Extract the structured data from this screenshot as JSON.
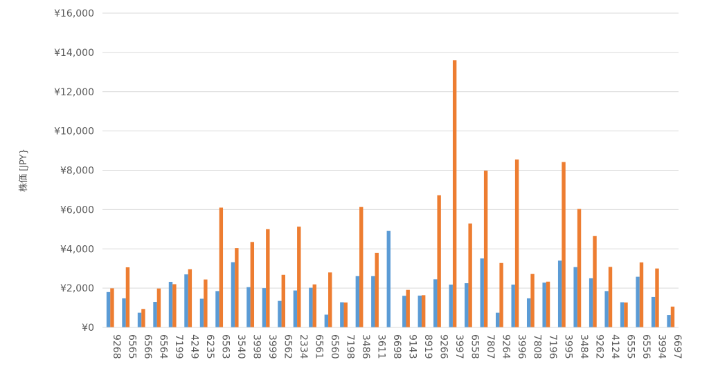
{
  "chart_data": {
    "type": "bar",
    "ylabel": "株価 [JPY}",
    "ylim": [
      0,
      16000
    ],
    "ytick_step": 2000,
    "ytick_labels": [
      "¥0",
      "¥2,000",
      "¥4,000",
      "¥6,000",
      "¥8,000",
      "¥10,000",
      "¥12,000",
      "¥14,000",
      "¥16,000"
    ],
    "grid": true,
    "categories": [
      "9268",
      "6565",
      "6566",
      "6564",
      "7199",
      "4249",
      "6235",
      "6563",
      "3540",
      "3998",
      "3999",
      "6562",
      "2334",
      "6561",
      "6560",
      "7198",
      "3486",
      "3611",
      "6698",
      "9143",
      "8919",
      "9266",
      "3997",
      "6558",
      "7807",
      "9264",
      "3996",
      "7808",
      "7196",
      "3995",
      "3484",
      "9262",
      "4124",
      "6555",
      "6556",
      "3994",
      "6697"
    ],
    "series": [
      {
        "color": "#5B9BD5",
        "values": [
          1800,
          1480,
          750,
          1300,
          2320,
          2700,
          1460,
          1850,
          3320,
          2050,
          2000,
          1350,
          1880,
          2020,
          650,
          1280,
          2610,
          2610,
          4920,
          1610,
          1620,
          2450,
          2180,
          2250,
          3510,
          750,
          2180,
          1480,
          2280,
          3400,
          3070,
          2500,
          1850,
          1280,
          2580,
          1550,
          630
        ]
      },
      {
        "color": "#ED7D31",
        "values": [
          1990,
          3060,
          940,
          1980,
          2200,
          2960,
          2440,
          6100,
          4040,
          4350,
          5000,
          2680,
          5130,
          2190,
          2800,
          1270,
          6130,
          3800,
          null,
          1910,
          1640,
          6730,
          13600,
          5290,
          7980,
          3280,
          8550,
          2720,
          2330,
          8420,
          6030,
          4650,
          3080,
          1270,
          3310,
          3000,
          1060
        ]
      }
    ]
  }
}
